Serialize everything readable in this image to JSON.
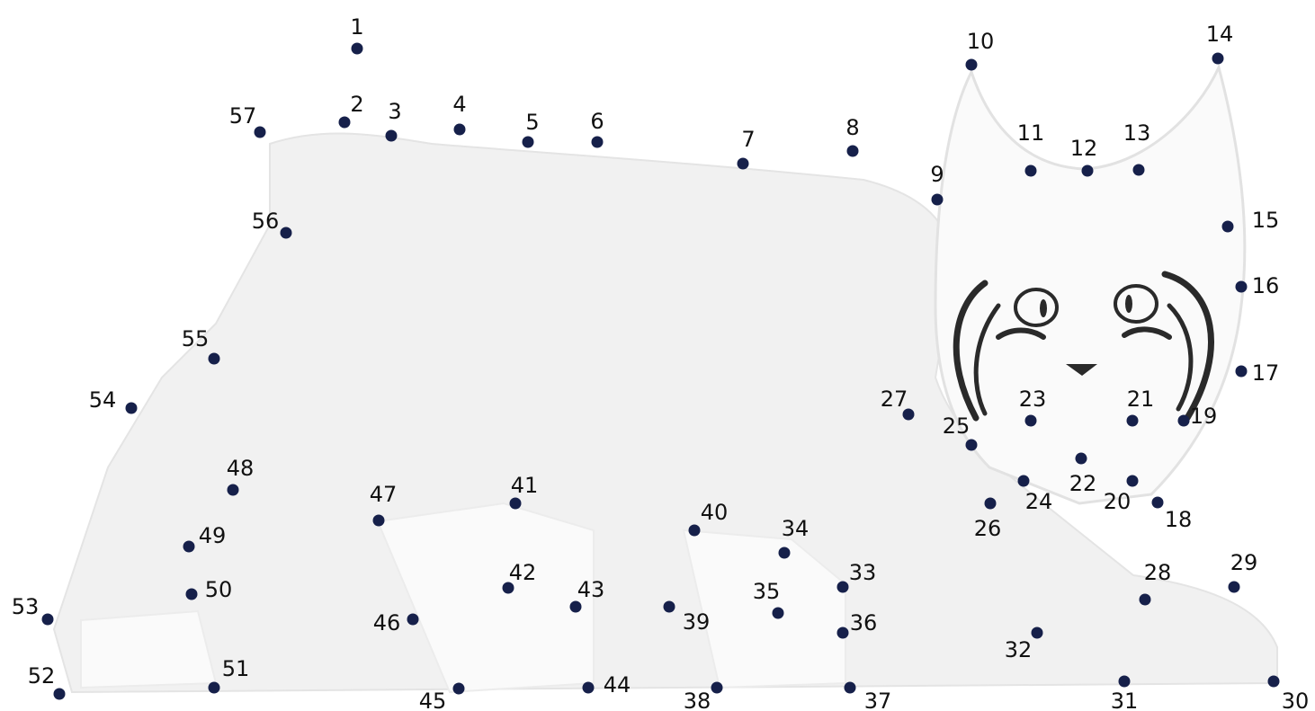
{
  "puzzle": {
    "type": "connect-the-dots",
    "subject": "bobcat",
    "dot_color": "#16204a",
    "label_color": "#111111",
    "dots": [
      "1",
      "2",
      "3",
      "4",
      "5",
      "6",
      "7",
      "8",
      "9",
      "10",
      "11",
      "12",
      "13",
      "14",
      "15",
      "16",
      "17",
      "18",
      "19",
      "20",
      "21",
      "22",
      "23",
      "24",
      "25",
      "26",
      "27",
      "28",
      "29",
      "30",
      "31",
      "32",
      "33",
      "34",
      "35",
      "36",
      "37",
      "38",
      "39",
      "40",
      "41",
      "42",
      "43",
      "44",
      "45",
      "46",
      "47",
      "48",
      "49",
      "50",
      "51",
      "52",
      "53",
      "54",
      "55",
      "56",
      "57"
    ]
  }
}
